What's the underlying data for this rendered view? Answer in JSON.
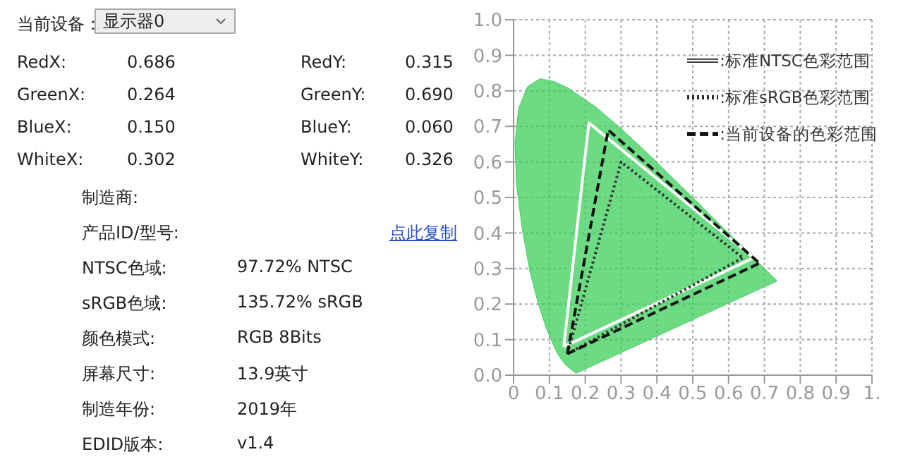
{
  "chart_data": [
    {
      "type": "other",
      "annotations": [
        "当前设备：",
        "显示器0",
        "RedX:",
        "0.686",
        "RedY:",
        "0.315",
        "GreenX:",
        "0.264",
        "GreenY:",
        "0.690",
        "BlueX:",
        "0.150",
        "BlueY:",
        "0.060",
        "WhiteX:",
        "0.302",
        "WhiteY:",
        "0.326",
        "点此复制",
        "制造商:",
        "产品ID/型号:",
        "NTSC色域:",
        "sRGB色域:",
        "颜色模式:",
        "屏幕尺寸:",
        "制造年份:",
        "EDID版本:",
        "97.72% NTSC",
        "135.72% sRGB",
        "RGB 8Bits",
        "13.9英寸",
        "2019年",
        "v1.4"
      ]
    },
    {
      "type": "line",
      "xlim": [
        0,
        1
      ],
      "ylim": [
        0,
        1
      ],
      "xticks": [
        0,
        {
          "value": 0.1,
          "label": "0.1"
        },
        {
          "value": 0.2,
          "label": "0.2"
        },
        {
          "value": 0.3,
          "label": "0.3"
        },
        {
          "value": 0.4,
          "label": "0.4"
        },
        {
          "value": 0.5,
          "label": "0.5"
        },
        {
          "value": 0.6,
          "label": "0.6"
        },
        {
          "value": 0.7,
          "label": "0.7"
        },
        {
          "value": 0.8,
          "label": "0.8"
        },
        {
          "value": 0.9,
          "label": "0.9"
        },
        {
          "value": 1,
          "label": "1."
        }
      ],
      "yticks": [
        {
          "value": 0,
          "label": "0.0"
        },
        0.1,
        0.2,
        0.3,
        0.4,
        0.5,
        0.6,
        0.7,
        0.8,
        0.9,
        {
          "value": 1,
          "label": "1.0"
        }
      ],
      "grid": true,
      "legend": "top right",
      "marker": "none",
      "series": [
        {
          "type": "area",
          "color": "#3ccf5a",
          "x": [
            0.174,
            0.144,
            0.124,
            0.11,
            0.091,
            0.069,
            0.045,
            0.024,
            0.008,
            0.004,
            0.014,
            0.039,
            0.074,
            0.114,
            0.155,
            0.23,
            0.302,
            0.373,
            0.444,
            0.513,
            0.575,
            0.627,
            0.692,
            0.735,
            0.174
          ],
          "values": [
            0.005,
            0.03,
            0.058,
            0.087,
            0.133,
            0.201,
            0.295,
            0.413,
            0.538,
            0.655,
            0.75,
            0.812,
            0.834,
            0.826,
            0.806,
            0.754,
            0.692,
            0.625,
            0.555,
            0.487,
            0.424,
            0.373,
            0.308,
            0.265,
            0.005
          ]
        },
        {
          "name": ":标准NTSC色彩范围",
          "color": "#ffffff",
          "line_style": "solid",
          "x": [
            0.14,
            0.21,
            0.67
          ],
          "values": [
            0.08,
            0.71,
            0.33
          ]
        },
        {
          "color": "#ffffff",
          "line_style": "solid",
          "x": [
            0.14,
            0.67
          ],
          "values": [
            0.08,
            0.33
          ]
        },
        {
          "name": ":标准sRGB色彩范围",
          "color": "#333333",
          "line_style": "dotted",
          "x": [
            0.15,
            0.3,
            0.64
          ],
          "values": [
            0.06,
            0.6,
            0.33
          ]
        },
        {
          "color": "#333333",
          "line_style": "dotted",
          "x": [
            0.15,
            0.64
          ],
          "values": [
            0.06,
            0.33
          ]
        },
        {
          "name": ":当前设备的色彩范围",
          "color": "#111111",
          "line_style": "dashed",
          "x": [
            0.15,
            0.264,
            0.686
          ],
          "values": [
            0.06,
            0.69,
            0.315
          ]
        },
        {
          "color": "#111111",
          "line_style": "dashed",
          "x": [
            0.15,
            0.686
          ],
          "values": [
            0.06,
            0.315
          ]
        }
      ]
    }
  ]
}
